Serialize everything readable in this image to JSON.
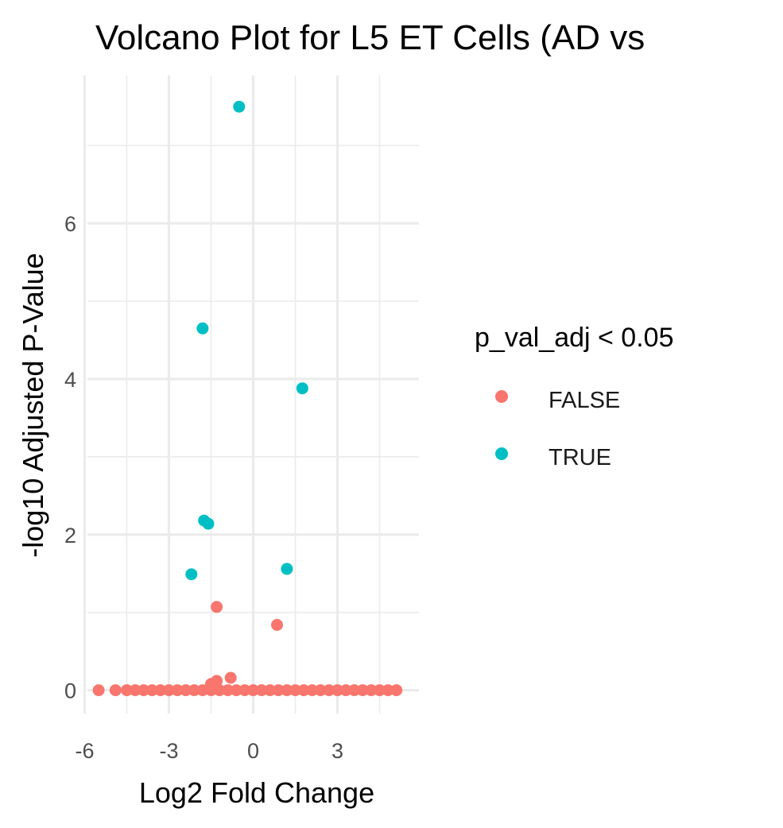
{
  "chart_data": {
    "type": "scatter",
    "title": "Volcano Plot for L5 ET Cells (AD vs",
    "xlabel": "Log2 Fold Change",
    "ylabel": "-log10 Adjusted P-Value",
    "xlim": [
      -5.9,
      5.9
    ],
    "ylim": [
      -0.3,
      7.9
    ],
    "x_ticks": [
      -6,
      -3,
      0,
      3
    ],
    "x_tick_labels": [
      "-6",
      "-3",
      "0",
      "3"
    ],
    "y_ticks": [
      0,
      2,
      4,
      6
    ],
    "y_tick_labels": [
      "0",
      "2",
      "4",
      "6"
    ],
    "x_minor_ticks": [
      -4.5,
      -1.5,
      1.5,
      4.5
    ],
    "y_minor_ticks": [
      1,
      3,
      5,
      7
    ],
    "grid": true,
    "legend": {
      "title": "p_val_adj < 0.05",
      "position": "right",
      "entries": [
        {
          "label": "FALSE",
          "color": "#F8766D"
        },
        {
          "label": "TRUE",
          "color": "#00BFC4"
        }
      ]
    },
    "series": [
      {
        "name": "FALSE",
        "color": "#F8766D",
        "points": [
          [
            -5.5,
            0.0
          ],
          [
            -4.9,
            0.0
          ],
          [
            -4.5,
            0.0
          ],
          [
            -4.2,
            0.0
          ],
          [
            -3.9,
            0.0
          ],
          [
            -3.6,
            0.0
          ],
          [
            -3.3,
            0.0
          ],
          [
            -3.0,
            0.0
          ],
          [
            -2.7,
            0.0
          ],
          [
            -2.4,
            0.0
          ],
          [
            -2.1,
            0.0
          ],
          [
            -1.8,
            0.0
          ],
          [
            -1.5,
            0.0
          ],
          [
            -1.2,
            0.0
          ],
          [
            -0.9,
            0.0
          ],
          [
            -0.6,
            0.0
          ],
          [
            -0.3,
            0.0
          ],
          [
            0.0,
            0.0
          ],
          [
            0.3,
            0.0
          ],
          [
            0.6,
            0.0
          ],
          [
            0.9,
            0.0
          ],
          [
            1.2,
            0.0
          ],
          [
            1.5,
            0.0
          ],
          [
            1.8,
            0.0
          ],
          [
            2.1,
            0.0
          ],
          [
            2.4,
            0.0
          ],
          [
            2.7,
            0.0
          ],
          [
            3.0,
            0.0
          ],
          [
            3.3,
            0.0
          ],
          [
            3.6,
            0.0
          ],
          [
            3.9,
            0.0
          ],
          [
            4.2,
            0.0
          ],
          [
            4.5,
            0.0
          ],
          [
            4.8,
            0.0
          ],
          [
            5.1,
            0.0
          ],
          [
            -1.5,
            0.08
          ],
          [
            -1.3,
            0.12
          ],
          [
            -0.8,
            0.16
          ],
          [
            -1.3,
            1.07
          ],
          [
            0.85,
            0.84
          ]
        ]
      },
      {
        "name": "TRUE",
        "color": "#00BFC4",
        "points": [
          [
            -0.5,
            7.5
          ],
          [
            -1.8,
            4.65
          ],
          [
            1.75,
            3.88
          ],
          [
            -1.75,
            2.18
          ],
          [
            -1.6,
            2.14
          ],
          [
            -2.2,
            1.49
          ],
          [
            1.2,
            1.56
          ]
        ]
      }
    ]
  }
}
